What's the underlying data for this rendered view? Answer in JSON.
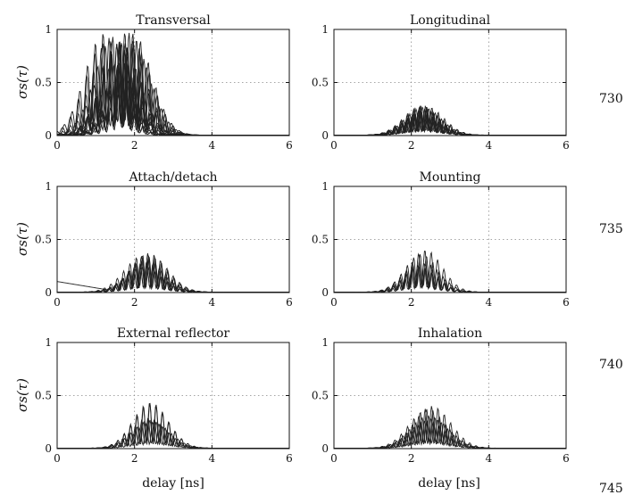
{
  "figure": {
    "ylabel": "σs(τ)",
    "xlabel": "delay [ns]",
    "line_numbers": [
      "730",
      "735",
      "740",
      "745"
    ]
  },
  "chart_data": [
    {
      "type": "line",
      "title": "Transversal",
      "xlim": [
        0,
        6
      ],
      "ylim": [
        0,
        1
      ],
      "xticks": [
        "0",
        "2",
        "4",
        "6"
      ],
      "yticks": [
        "0",
        "0.5",
        "1"
      ],
      "grid": true,
      "num_curves": 14,
      "envelope": {
        "center": 1.6,
        "width": 0.9,
        "peak": 1.0
      }
    },
    {
      "type": "line",
      "title": "Longitudinal",
      "xlim": [
        0,
        6
      ],
      "ylim": [
        0,
        1
      ],
      "xticks": [
        "0",
        "2",
        "4",
        "6"
      ],
      "yticks": [
        "0",
        "0.5",
        "1"
      ],
      "grid": true,
      "num_curves": 8,
      "envelope": {
        "center": 2.3,
        "width": 0.85,
        "peak": 0.32
      }
    },
    {
      "type": "line",
      "title": "Attach/detach",
      "xlim": [
        0,
        6
      ],
      "ylim": [
        0,
        1
      ],
      "xticks": [
        "0",
        "2",
        "4",
        "6"
      ],
      "yticks": [
        "0",
        "0.5",
        "1"
      ],
      "grid": true,
      "num_curves": 6,
      "envelope": {
        "center": 2.3,
        "width": 0.9,
        "peak": 0.38
      }
    },
    {
      "type": "line",
      "title": "Mounting",
      "xlim": [
        0,
        6
      ],
      "ylim": [
        0,
        1
      ],
      "xticks": [
        "0",
        "2",
        "4",
        "6"
      ],
      "yticks": [
        "0",
        "0.5",
        "1"
      ],
      "grid": true,
      "num_curves": 5,
      "envelope": {
        "center": 2.3,
        "width": 0.8,
        "peak": 0.42
      }
    },
    {
      "type": "line",
      "title": "External reflector",
      "xlim": [
        0,
        6
      ],
      "ylim": [
        0,
        1
      ],
      "xticks": [
        "0",
        "2",
        "4",
        "6"
      ],
      "yticks": [
        "0",
        "0.5",
        "1"
      ],
      "grid": true,
      "num_curves": 5,
      "envelope": {
        "center": 2.4,
        "width": 0.85,
        "peak": 0.44
      }
    },
    {
      "type": "line",
      "title": "Inhalation",
      "xlim": [
        0,
        6
      ],
      "ylim": [
        0,
        1
      ],
      "xticks": [
        "0",
        "2",
        "4",
        "6"
      ],
      "yticks": [
        "0",
        "0.5",
        "1"
      ],
      "grid": true,
      "num_curves": 5,
      "envelope": {
        "center": 2.5,
        "width": 0.9,
        "peak": 0.46
      }
    }
  ]
}
